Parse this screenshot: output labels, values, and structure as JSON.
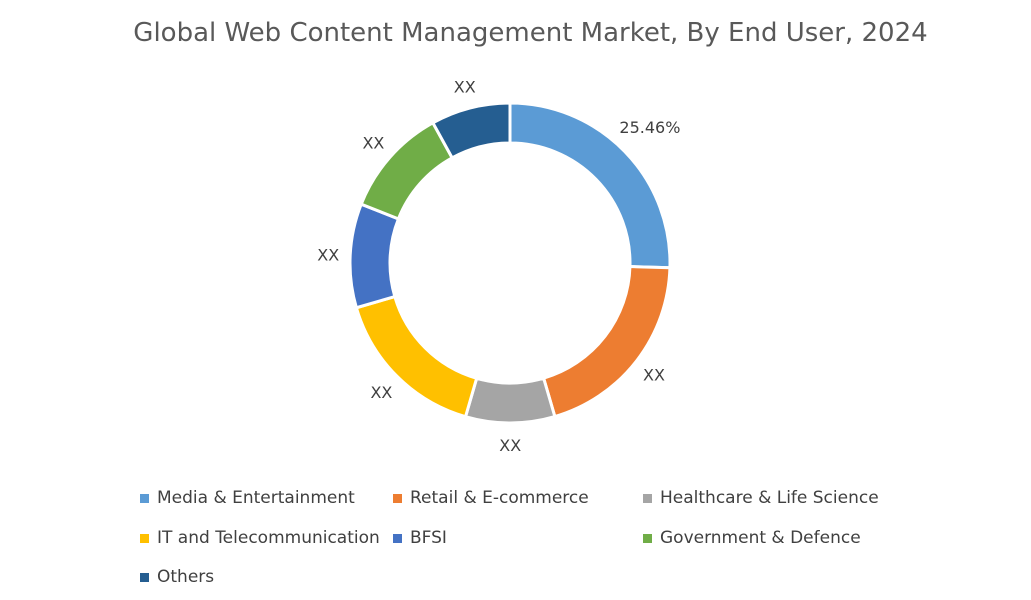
{
  "chart_data": {
    "type": "pie",
    "donut": true,
    "title": "Global Web Content Management Market, By End User, 2024",
    "categories": [
      "Media & Entertainment",
      "Retail & E-commerce",
      "Healthcare & Life Science",
      "IT and Telecommunication",
      "BFSI",
      "Government & Defence",
      "Others"
    ],
    "values": [
      25.46,
      20,
      9,
      16,
      10.5,
      11,
      8
    ],
    "labels": [
      "25.46%",
      "XX",
      "XX",
      "XX",
      "XX",
      "XX",
      "XX"
    ],
    "colors": [
      "#5B9BD5",
      "#ED7D31",
      "#A5A5A5",
      "#FFC000",
      "#4472C4",
      "#70AD47",
      "#255E91"
    ],
    "legend_position": "bottom"
  }
}
